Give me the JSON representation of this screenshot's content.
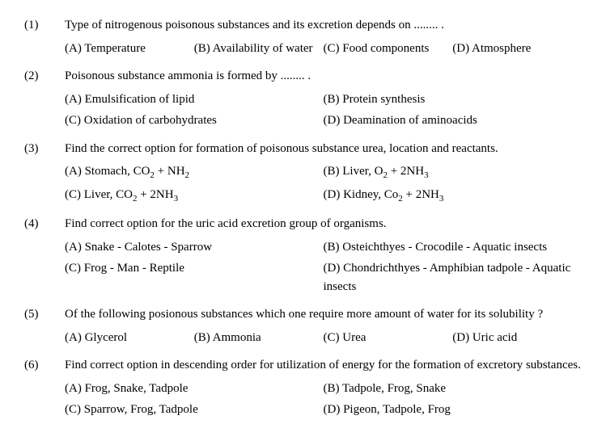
{
  "questions": [
    {
      "num": "(1)",
      "text": "Type of nitrogenous poisonous substances and its excretion depends on ........ .",
      "layout": "4col",
      "options": [
        {
          "label": "(A) Temperature"
        },
        {
          "label": "(B) Availability of water"
        },
        {
          "label": "(C) Food components"
        },
        {
          "label": "(D) Atmosphere"
        }
      ]
    },
    {
      "num": "(2)",
      "text": "Poisonous substance ammonia is formed by ........ .",
      "layout": "2col",
      "options": [
        {
          "label": "(A) Emulsification of lipid"
        },
        {
          "label": "(B) Protein synthesis"
        },
        {
          "label": "(C) Oxidation of carbohydrates"
        },
        {
          "label": "(D) Deamination of aminoacids"
        }
      ]
    },
    {
      "num": "(3)",
      "text": "Find the correct option for formation of poisonous substance urea, location and reactants.",
      "layout": "2col",
      "options": [
        {
          "label": "(A) Stomach, CO",
          "sub1": "2",
          "mid": " + NH",
          "sub2": "2"
        },
        {
          "label": "(B) Liver, O",
          "sub1": "2",
          "mid": " + 2NH",
          "sub2": "3"
        },
        {
          "label": "(C) Liver, CO",
          "sub1": "2",
          "mid": " + 2NH",
          "sub2": "3"
        },
        {
          "label": "(D) Kidney, Co",
          "sub1": "2",
          "mid": " + 2NH",
          "sub2": "3"
        }
      ]
    },
    {
      "num": "(4)",
      "text": "Find correct option for the uric acid excretion group of organisms.",
      "layout": "2col",
      "options": [
        {
          "label": "(A) Snake - Calotes - Sparrow"
        },
        {
          "label": "(B) Osteichthyes - Crocodile - Aquatic insects"
        },
        {
          "label": "(C) Frog - Man - Reptile"
        },
        {
          "label": "(D) Chondrichthyes - Amphibian tadpole - Aquatic insects"
        }
      ]
    },
    {
      "num": "(5)",
      "text": "Of the following posionous substances which one require more amount of water for its solubility ?",
      "layout": "4col",
      "options": [
        {
          "label": "(A) Glycerol"
        },
        {
          "label": "(B) Ammonia"
        },
        {
          "label": "(C) Urea"
        },
        {
          "label": "(D) Uric acid"
        }
      ]
    },
    {
      "num": "(6)",
      "text": "Find correct option in descending order for utilization of energy for the formation of excretory substances.",
      "layout": "2col",
      "options": [
        {
          "label": "(A) Frog, Snake, Tadpole"
        },
        {
          "label": "(B) Tadpole, Frog, Snake"
        },
        {
          "label": "(C) Sparrow, Frog, Tadpole"
        },
        {
          "label": "(D) Pigeon, Tadpole, Frog"
        }
      ]
    }
  ]
}
